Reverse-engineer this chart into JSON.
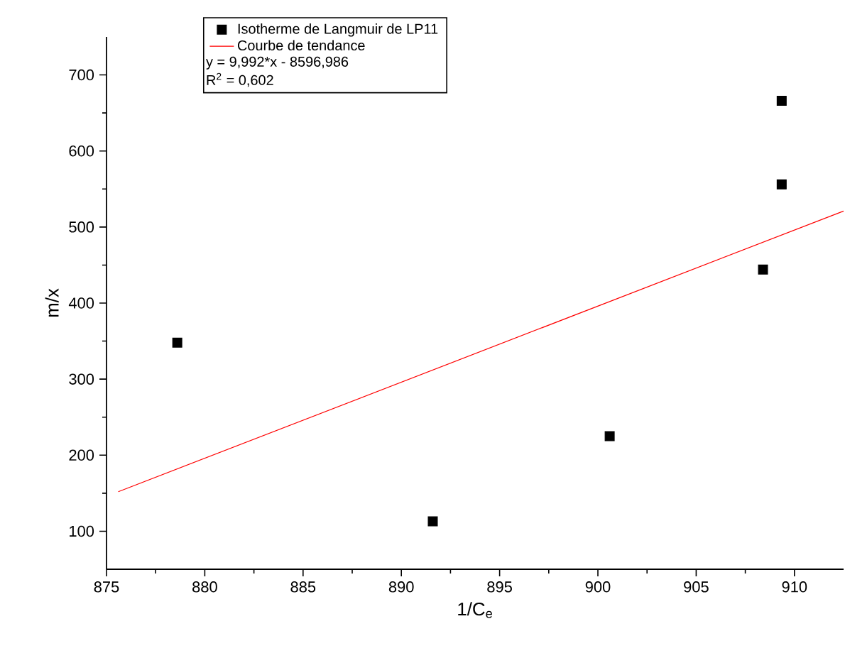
{
  "chart_data": {
    "type": "scatter",
    "xlabel": "1/C$_{e}$",
    "ylabel": "m/x",
    "xlim": [
      875,
      912.5
    ],
    "ylim": [
      50,
      750
    ],
    "xticks": [
      875,
      880,
      885,
      890,
      895,
      900,
      905,
      910
    ],
    "yticks": [
      100,
      200,
      300,
      400,
      500,
      600,
      700
    ],
    "grid": false,
    "legend": "top",
    "annotations": [
      "y = 9,992*x - 8596,986",
      "R$^{2}$ = 0,602"
    ],
    "series": [
      {
        "name": "Isotherme de Langmuir de LP11",
        "marker": "square",
        "color": "#000000",
        "x": [
          878.6,
          891.6,
          900.6,
          908.4,
          909.35,
          909.35
        ],
        "values": [
          348,
          113,
          225,
          444,
          556,
          666
        ]
      },
      {
        "name": "Courbe de tendance",
        "type": "line",
        "marker": "none",
        "color": "#ff0000",
        "x": [
          875.6,
          912.5
        ],
        "values": [
          152,
          521
        ]
      }
    ]
  }
}
